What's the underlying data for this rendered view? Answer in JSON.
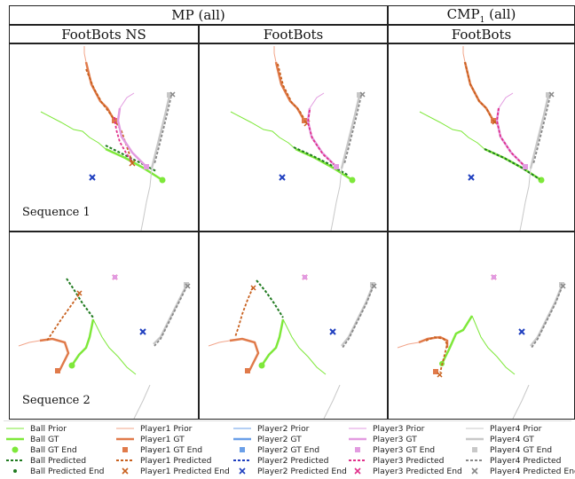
{
  "headers": {
    "mp": "MP (all)",
    "cmp_base": "CMP",
    "cmp_sub": "1",
    "cmp_rest": " (all)",
    "col1": "FootBots NS",
    "col2": "FootBots",
    "col3": "FootBots"
  },
  "rows": [
    "Sequence 1",
    "Sequence 2"
  ],
  "colors": {
    "ball": "#7ee83a",
    "ball_dark": "#1f7a1f",
    "p1": "#e07a4a",
    "p1_prior": "#f2a58a",
    "p2": "#1f3fbf",
    "p2_light": "#6a9fe8",
    "p3": "#e0308a",
    "p3_light": "#e29be0",
    "p4": "#888888",
    "p4_light": "#c8c8c8"
  },
  "chart_data": {
    "type": "scatter",
    "legend": [
      {
        "label": "Ball Prior",
        "style": "line",
        "color": "#7ee83a"
      },
      {
        "label": "Player1 Prior",
        "style": "line",
        "color": "#f2a58a"
      },
      {
        "label": "Player2 Prior",
        "style": "line",
        "color": "#6a9fe8"
      },
      {
        "label": "Player3 Prior",
        "style": "line",
        "color": "#e29be0"
      },
      {
        "label": "Player4 Prior",
        "style": "line",
        "color": "#c8c8c8"
      },
      {
        "label": "Ball GT",
        "style": "thick",
        "color": "#7ee83a"
      },
      {
        "label": "Player1 GT",
        "style": "thick",
        "color": "#e07a4a"
      },
      {
        "label": "Player2 GT",
        "style": "thick",
        "color": "#6a9fe8"
      },
      {
        "label": "Player3 GT",
        "style": "thick",
        "color": "#e29be0"
      },
      {
        "label": "Player4 GT",
        "style": "thick",
        "color": "#c8c8c8"
      },
      {
        "label": "Ball GT End",
        "style": "dot",
        "color": "#7ee83a"
      },
      {
        "label": "Player1 GT End",
        "style": "square",
        "color": "#e07a4a"
      },
      {
        "label": "Player2 GT End",
        "style": "square",
        "color": "#6a9fe8"
      },
      {
        "label": "Player3 GT End",
        "style": "square",
        "color": "#e29be0"
      },
      {
        "label": "Player4 GT End",
        "style": "square",
        "color": "#c8c8c8"
      },
      {
        "label": "Ball Predicted",
        "style": "dash",
        "color": "#1f7a1f"
      },
      {
        "label": "Player1 Predicted",
        "style": "dash",
        "color": "#c8601e"
      },
      {
        "label": "Player2 Predicted",
        "style": "dash",
        "color": "#1f3fbf"
      },
      {
        "label": "Player3 Predicted",
        "style": "dash",
        "color": "#e0308a"
      },
      {
        "label": "Player4 Predicted",
        "style": "dash",
        "color": "#888888"
      },
      {
        "label": "Ball Predicted End",
        "style": "smalldot",
        "color": "#1f7a1f"
      },
      {
        "label": "Player1 Predicted End",
        "style": "x",
        "color": "#c8601e"
      },
      {
        "label": "Player2 Predicted End",
        "style": "x",
        "color": "#1f3fbf"
      },
      {
        "label": "Player3 Predicted End",
        "style": "x",
        "color": "#e0308a"
      },
      {
        "label": "Player4 Predicted End",
        "style": "x",
        "color": "#888888"
      }
    ]
  }
}
